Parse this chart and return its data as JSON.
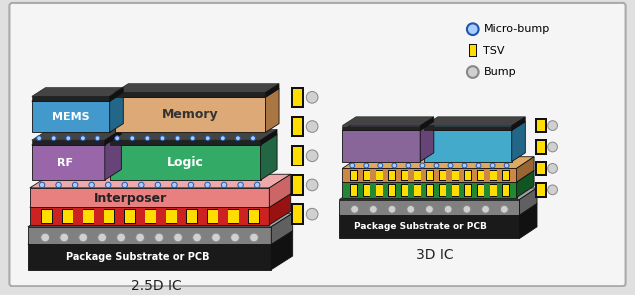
{
  "background_color": "#e0e0e0",
  "panel_color": "#f5f5f5",
  "title_25d": "2.5D IC",
  "title_3d": "3D IC",
  "legend_items": [
    "Micro-bump",
    "TSV",
    "Bump"
  ],
  "colors": {
    "substrate_dark": "#1a1a1a",
    "substrate_gray": "#808080",
    "substrate_gray_top": "#a0a0a0",
    "substrate_gray_side": "#606060",
    "interposer_red": "#cc2222",
    "interposer_red_top": "#dd4444",
    "interposer_red_side": "#991111",
    "interposer_pink": "#e88080",
    "interposer_pink_top": "#eeaaaa",
    "interposer_pink_side": "#cc6666",
    "rf_face": "#9966aa",
    "rf_top": "#bb88cc",
    "rf_side": "#664477",
    "logic_face": "#33aa66",
    "logic_top": "#55cc88",
    "logic_side": "#226644",
    "mems_face": "#4499cc",
    "mems_top": "#66bbee",
    "mems_side": "#226688",
    "memory_face": "#ddaa77",
    "memory_top": "#eeccaa",
    "memory_side": "#aa7744",
    "tsv_yellow": "#ffdd00",
    "tsv_black": "#111111",
    "bump_light": "#d0d0d0",
    "bump_dark": "#888888",
    "microbump_fill": "#aaccff",
    "microbump_edge": "#2255aa",
    "chip_edge": "#111111",
    "chip_dark": "#222222",
    "chip_dark_top": "#444444",
    "chip_dark_side": "#111111",
    "orange_layer_face": "#cc8844",
    "orange_layer_top": "#ddaa66",
    "orange_layer_side": "#996633",
    "green_layer_face": "#228833",
    "green_layer_top": "#33aa44",
    "green_layer_side": "#115522",
    "mauve_face": "#886699",
    "mauve_top": "#aa88bb",
    "mauve_side": "#664477",
    "cyan_face": "#44aacc",
    "cyan_top": "#66ccee",
    "cyan_side": "#226688"
  },
  "font_sizes": {
    "chip_label": 8,
    "interposer_label": 9,
    "substrate_label": 7,
    "title": 10,
    "legend": 8
  }
}
